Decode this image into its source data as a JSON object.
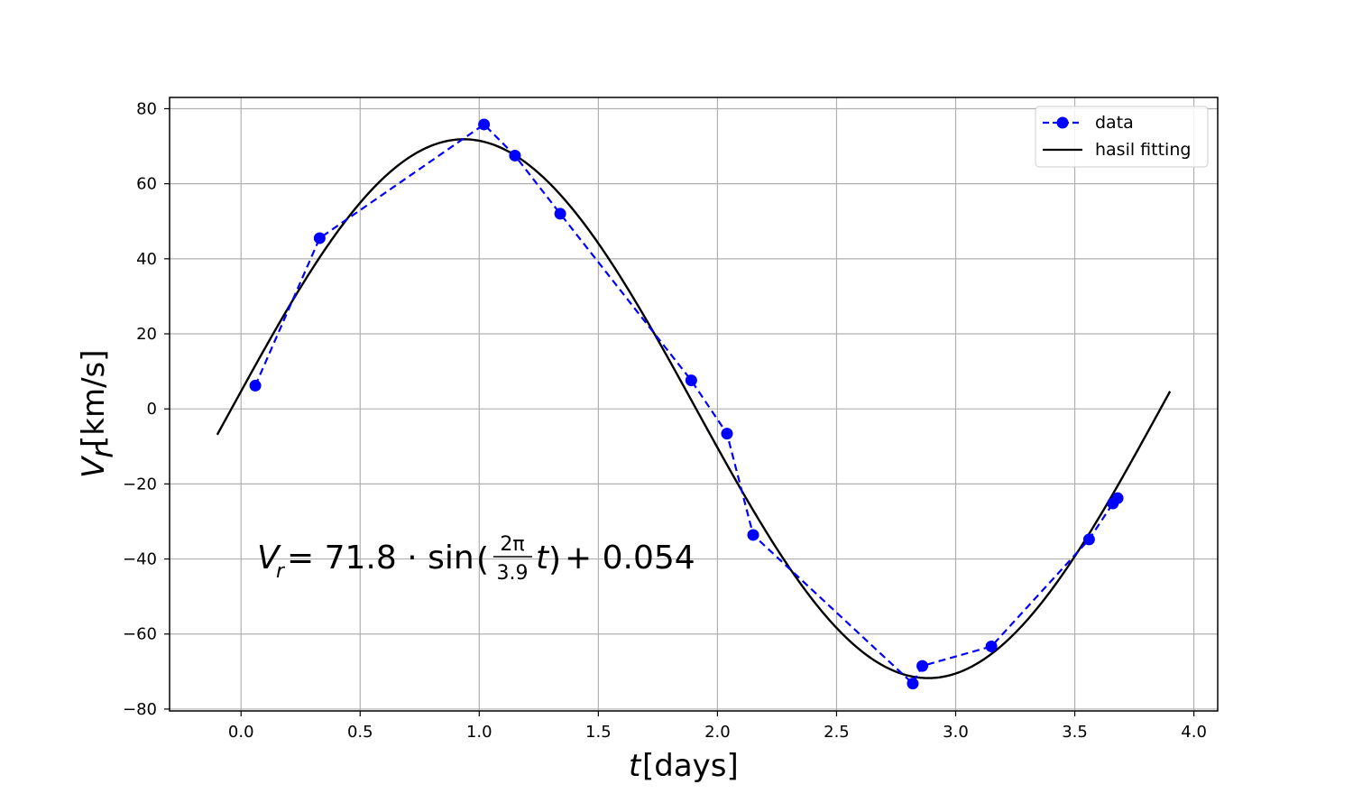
{
  "chart_data": {
    "type": "line",
    "title": "",
    "xlabel_var": "t",
    "xlabel_unit": " [days]",
    "ylabel_var": "V",
    "ylabel_sub": "r",
    "ylabel_unit": " [km/s]",
    "xlim": [
      -0.3,
      4.1
    ],
    "ylim": [
      -80.5,
      83
    ],
    "xticks": [
      0.0,
      0.5,
      1.0,
      1.5,
      2.0,
      2.5,
      3.0,
      3.5,
      4.0
    ],
    "xtick_labels": [
      "0.0",
      "0.5",
      "1.0",
      "1.5",
      "2.0",
      "2.5",
      "3.0",
      "3.5",
      "4.0"
    ],
    "yticks": [
      -80,
      -60,
      -40,
      -20,
      0,
      20,
      40,
      60,
      80
    ],
    "ytick_labels": [
      "−80",
      "−60",
      "−40",
      "−20",
      "0",
      "20",
      "40",
      "60",
      "80"
    ],
    "grid": true,
    "legend_position": "top-right",
    "series": [
      {
        "name": "data",
        "style": "dashed-marker",
        "color": "#0000ff",
        "x": [
          0.06,
          0.33,
          1.02,
          1.15,
          1.34,
          1.89,
          2.04,
          2.15,
          2.82,
          2.86,
          3.15,
          3.56,
          3.66,
          3.68
        ],
        "y": [
          6.2,
          45.5,
          75.8,
          67.5,
          52.0,
          7.6,
          -6.6,
          -33.6,
          -73.2,
          -68.5,
          -63.3,
          -34.8,
          -25.2,
          -23.8
        ]
      },
      {
        "name": "hasil fitting",
        "style": "solid",
        "color": "#000000",
        "model": {
          "amplitude": 71.8,
          "period": 3.9,
          "offset": 0.054,
          "phase_shift": -0.04,
          "x_range": [
            -0.1,
            3.9
          ]
        }
      }
    ],
    "annotation": {
      "lhs_var": "V",
      "lhs_sub": "r",
      "eq": " = 71.8 · sin",
      "frac_num": "2π",
      "frac_den": "3.9",
      "after": "t",
      "tail": " + 0.054"
    }
  }
}
